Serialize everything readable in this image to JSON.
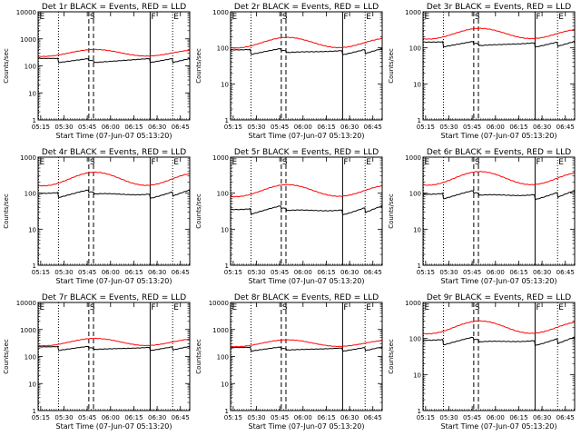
{
  "layout_info": {
    "rows": 3,
    "cols": 3
  },
  "shared": {
    "xlabel": "Start Time (07-Jun-07 05:13:20)",
    "ylabel": "Counts/sec",
    "x_ticks": [
      "05:15",
      "05:30",
      "05:45",
      "06:00",
      "06:15",
      "06:30",
      "06:45"
    ],
    "x_tick_minutes": [
      15,
      30,
      45,
      60,
      75,
      90,
      105
    ],
    "x_range_minutes": [
      13.33,
      111
    ],
    "event_markers": [
      {
        "label": "E",
        "minute": 13.6,
        "style": "dotted"
      },
      {
        "label": "",
        "minute": 26.5,
        "style": "dotted"
      },
      {
        "label": "S",
        "minute": 46.0,
        "style": "dashed"
      },
      {
        "label": "",
        "minute": 49.0,
        "style": "dashed"
      },
      {
        "label": "F",
        "minute": 85.5,
        "style": "solid"
      },
      {
        "label": "E",
        "minute": 100.0,
        "style": "dotted"
      }
    ],
    "colors": {
      "events": "#000000",
      "lld": "#ff0000"
    }
  },
  "chart_data": [
    {
      "type": "line",
      "title": "Det 1r BLACK = Events, RED = LLD",
      "ylim": [
        1,
        10000
      ],
      "yscale": "log",
      "y_ticks": [
        "1",
        "10",
        "100",
        "1000",
        "10000"
      ],
      "series": [
        {
          "name": "Events",
          "base": 150,
          "amp": 0.0,
          "tilt": 0.15
        },
        {
          "name": "LLD",
          "base": 280,
          "amp": 0.12,
          "tilt": 0.1
        }
      ]
    },
    {
      "type": "line",
      "title": "Det 2r BLACK = Events, RED = LLD",
      "ylim": [
        1,
        1000
      ],
      "yscale": "log",
      "y_ticks": [
        "1",
        "10",
        "100",
        "1000"
      ],
      "series": [
        {
          "name": "Events",
          "base": 75,
          "amp": 0.03,
          "tilt": 0.12
        },
        {
          "name": "LLD",
          "base": 130,
          "amp": 0.14,
          "tilt": 0.08
        }
      ]
    },
    {
      "type": "line",
      "title": "Det 3r BLACK = Events, RED = LLD",
      "ylim": [
        1,
        1000
      ],
      "yscale": "log",
      "y_ticks": [
        "1",
        "10",
        "100",
        "1000"
      ],
      "series": [
        {
          "name": "Events",
          "base": 120,
          "amp": 0.02,
          "tilt": 0.12
        },
        {
          "name": "LLD",
          "base": 230,
          "amp": 0.14,
          "tilt": 0.1
        }
      ]
    },
    {
      "type": "line",
      "title": "Det 4r BLACK = Events, RED = LLD",
      "ylim": [
        1,
        1000
      ],
      "yscale": "log",
      "y_ticks": [
        "1",
        "10",
        "100",
        "1000"
      ],
      "series": [
        {
          "name": "Events",
          "base": 90,
          "amp": 0.06,
          "tilt": 0.12
        },
        {
          "name": "LLD",
          "base": 230,
          "amp": 0.18,
          "tilt": 0.1
        }
      ]
    },
    {
      "type": "line",
      "title": "Det 5r BLACK = Events, RED = LLD",
      "ylim": [
        1,
        1000
      ],
      "yscale": "log",
      "y_ticks": [
        "1",
        "10",
        "100",
        "1000"
      ],
      "series": [
        {
          "name": "Events",
          "base": 32,
          "amp": 0.06,
          "tilt": 0.14
        },
        {
          "name": "LLD",
          "base": 110,
          "amp": 0.16,
          "tilt": 0.08
        }
      ]
    },
    {
      "type": "line",
      "title": "Det 6r BLACK = Events, RED = LLD",
      "ylim": [
        1,
        1000
      ],
      "yscale": "log",
      "y_ticks": [
        "1",
        "10",
        "100",
        "1000"
      ],
      "series": [
        {
          "name": "Events",
          "base": 85,
          "amp": 0.06,
          "tilt": 0.14
        },
        {
          "name": "LLD",
          "base": 240,
          "amp": 0.18,
          "tilt": 0.1
        }
      ]
    },
    {
      "type": "line",
      "title": "Det 7r BLACK = Events, RED = LLD",
      "ylim": [
        1,
        10000
      ],
      "yscale": "log",
      "y_ticks": [
        "1",
        "10",
        "100",
        "1000",
        "10000"
      ],
      "series": [
        {
          "name": "Events",
          "base": 190,
          "amp": 0.02,
          "tilt": 0.12
        },
        {
          "name": "LLD",
          "base": 320,
          "amp": 0.13,
          "tilt": 0.08
        }
      ]
    },
    {
      "type": "line",
      "title": "Det 8r BLACK = Events, RED = LLD",
      "ylim": [
        1,
        10000
      ],
      "yscale": "log",
      "y_ticks": [
        "1",
        "10",
        "100",
        "1000",
        "10000"
      ],
      "series": [
        {
          "name": "Events",
          "base": 180,
          "amp": 0.02,
          "tilt": 0.12
        },
        {
          "name": "LLD",
          "base": 290,
          "amp": 0.12,
          "tilt": 0.08
        }
      ]
    },
    {
      "type": "line",
      "title": "Det 9r BLACK = Events, RED = LLD",
      "ylim": [
        1,
        1000
      ],
      "yscale": "log",
      "y_ticks": [
        "1",
        "10",
        "100",
        "1000"
      ],
      "series": [
        {
          "name": "Events",
          "base": 80,
          "amp": 0.05,
          "tilt": 0.14
        },
        {
          "name": "LLD",
          "base": 190,
          "amp": 0.17,
          "tilt": 0.1
        }
      ]
    }
  ]
}
